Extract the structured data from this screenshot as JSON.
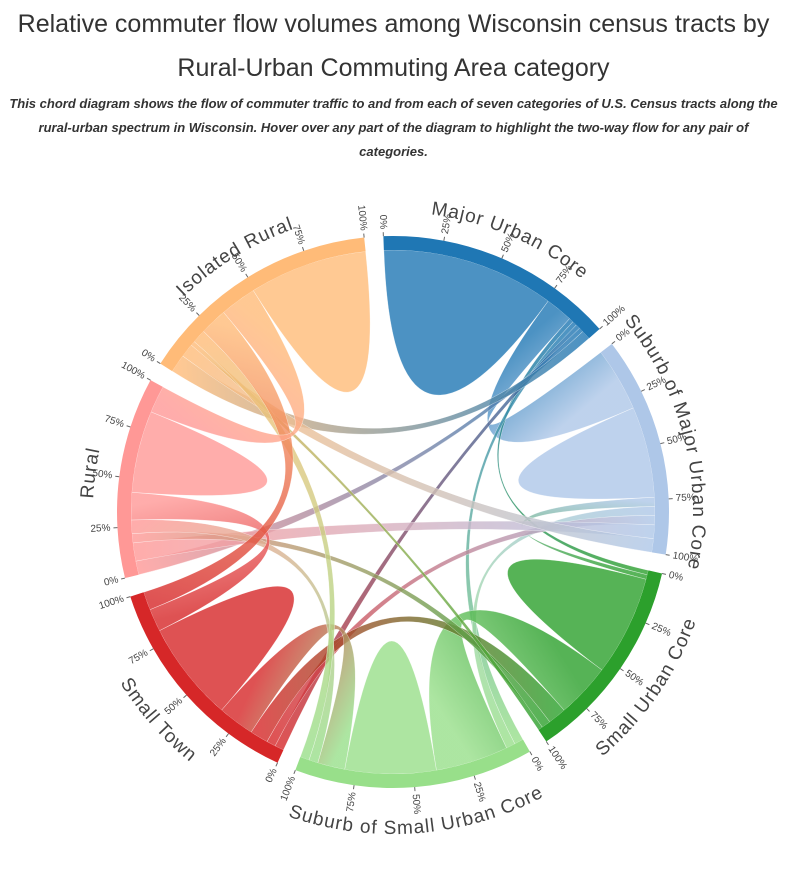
{
  "chart_data": {
    "type": "chord",
    "title": "Relative commuter flow volumes among Wisconsin census tracts by Rural-Urban Commuting Area category",
    "subtitle": "This chord diagram shows the flow of commuter traffic to and from each of seven categories of U.S. Census tracts along the rural-urban spectrum in Wisconsin. Hover over any part of the diagram to highlight the two-way flow for any pair of categories.",
    "groups": [
      {
        "name": "Major Urban Core",
        "color": "#1f77b4"
      },
      {
        "name": "Suburb of Major Urban Core",
        "color": "#aec7e8"
      },
      {
        "name": "Small Urban Core",
        "color": "#2ca02c"
      },
      {
        "name": "Suburb of Small Urban Core",
        "color": "#98df8a"
      },
      {
        "name": "Small Town",
        "color": "#d62728"
      },
      {
        "name": "Rural",
        "color": "#ff9896"
      },
      {
        "name": "Isolated Rural",
        "color": "#ffbb78"
      }
    ],
    "matrix": [
      [
        38,
        6,
        1,
        1,
        1,
        1,
        2
      ],
      [
        14,
        20,
        2,
        2,
        2,
        3,
        3
      ],
      [
        1,
        1,
        22,
        12,
        4,
        2,
        1
      ],
      [
        2,
        2,
        16,
        20,
        6,
        2,
        2
      ],
      [
        2,
        2,
        4,
        8,
        22,
        5,
        4
      ],
      [
        3,
        4,
        2,
        3,
        6,
        18,
        6
      ],
      [
        4,
        3,
        1,
        3,
        6,
        8,
        26
      ]
    ],
    "ticks": [
      {
        "value": 0,
        "label": "0%"
      },
      {
        "value": 25,
        "label": "25%"
      },
      {
        "value": 50,
        "label": "50%"
      },
      {
        "value": 75,
        "label": "75%"
      },
      {
        "value": 100,
        "label": "100%"
      }
    ]
  }
}
